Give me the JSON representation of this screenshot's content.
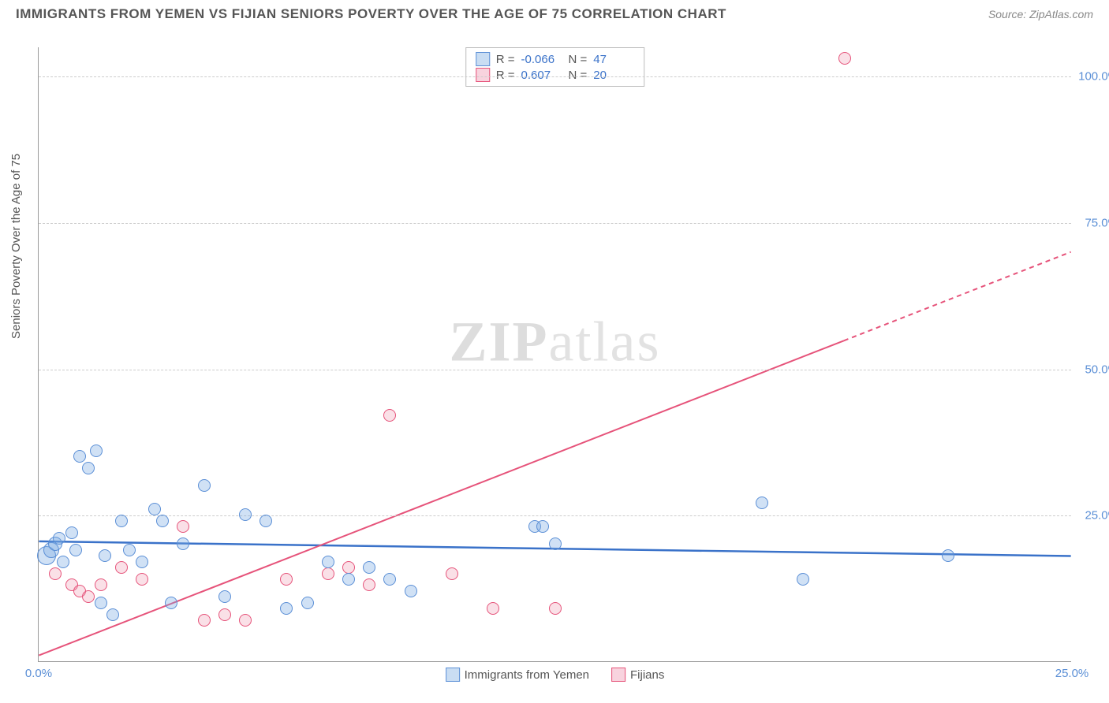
{
  "header": {
    "title": "IMMIGRANTS FROM YEMEN VS FIJIAN SENIORS POVERTY OVER THE AGE OF 75 CORRELATION CHART",
    "source_label": "Source: ZipAtlas.com"
  },
  "axes": {
    "y_label": "Seniors Poverty Over the Age of 75",
    "x_label": "",
    "xlim": [
      0,
      25
    ],
    "ylim": [
      0,
      105
    ],
    "y_ticks": [
      25,
      50,
      75,
      100
    ],
    "y_tick_labels": [
      "25.0%",
      "50.0%",
      "75.0%",
      "100.0%"
    ],
    "x_ticks": [
      0,
      25
    ],
    "x_tick_labels": [
      "0.0%",
      "25.0%"
    ],
    "grid_color": "#cccccc",
    "axis_color": "#999999",
    "tick_label_color": "#5b8fd6"
  },
  "watermark": {
    "part1": "ZIP",
    "part2": "atlas"
  },
  "stats_legend": {
    "rows": [
      {
        "swatch": "blue",
        "r_label": "R =",
        "r_value": "-0.066",
        "n_label": "N =",
        "n_value": "47"
      },
      {
        "swatch": "pink",
        "r_label": "R =",
        "r_value": "0.607",
        "n_label": "N =",
        "n_value": "20"
      }
    ]
  },
  "series_legend": {
    "items": [
      {
        "swatch": "blue",
        "label": "Immigrants from Yemen"
      },
      {
        "swatch": "pink",
        "label": "Fijians"
      }
    ]
  },
  "series": {
    "blue": {
      "color_fill": "rgba(120,170,225,0.35)",
      "color_stroke": "#5b8fd6",
      "marker_radius": 8,
      "trend": {
        "x1": 0,
        "y1": 20.5,
        "x2": 25,
        "y2": 18.0,
        "stroke": "#3a72c9",
        "width": 2.5,
        "dash_after_x": null
      },
      "points": [
        {
          "x": 0.2,
          "y": 18,
          "r": 12
        },
        {
          "x": 0.3,
          "y": 19,
          "r": 10
        },
        {
          "x": 0.4,
          "y": 20,
          "r": 9
        },
        {
          "x": 0.5,
          "y": 21,
          "r": 8
        },
        {
          "x": 0.6,
          "y": 17,
          "r": 8
        },
        {
          "x": 0.8,
          "y": 22,
          "r": 8
        },
        {
          "x": 0.9,
          "y": 19,
          "r": 8
        },
        {
          "x": 1.0,
          "y": 35,
          "r": 8
        },
        {
          "x": 1.2,
          "y": 33,
          "r": 8
        },
        {
          "x": 1.4,
          "y": 36,
          "r": 8
        },
        {
          "x": 1.5,
          "y": 10,
          "r": 8
        },
        {
          "x": 1.6,
          "y": 18,
          "r": 8
        },
        {
          "x": 1.8,
          "y": 8,
          "r": 8
        },
        {
          "x": 2.0,
          "y": 24,
          "r": 8
        },
        {
          "x": 2.2,
          "y": 19,
          "r": 8
        },
        {
          "x": 2.5,
          "y": 17,
          "r": 8
        },
        {
          "x": 2.8,
          "y": 26,
          "r": 8
        },
        {
          "x": 3.0,
          "y": 24,
          "r": 8
        },
        {
          "x": 3.2,
          "y": 10,
          "r": 8
        },
        {
          "x": 3.5,
          "y": 20,
          "r": 8
        },
        {
          "x": 4.0,
          "y": 30,
          "r": 8
        },
        {
          "x": 4.5,
          "y": 11,
          "r": 8
        },
        {
          "x": 5.0,
          "y": 25,
          "r": 8
        },
        {
          "x": 5.5,
          "y": 24,
          "r": 8
        },
        {
          "x": 6.0,
          "y": 9,
          "r": 8
        },
        {
          "x": 6.5,
          "y": 10,
          "r": 8
        },
        {
          "x": 7.0,
          "y": 17,
          "r": 8
        },
        {
          "x": 7.5,
          "y": 14,
          "r": 8
        },
        {
          "x": 8.0,
          "y": 16,
          "r": 8
        },
        {
          "x": 8.5,
          "y": 14,
          "r": 8
        },
        {
          "x": 9.0,
          "y": 12,
          "r": 8
        },
        {
          "x": 12.0,
          "y": 23,
          "r": 8
        },
        {
          "x": 12.2,
          "y": 23,
          "r": 8
        },
        {
          "x": 12.5,
          "y": 20,
          "r": 8
        },
        {
          "x": 17.5,
          "y": 27,
          "r": 8
        },
        {
          "x": 18.5,
          "y": 14,
          "r": 8
        },
        {
          "x": 22.0,
          "y": 18,
          "r": 8
        }
      ]
    },
    "pink": {
      "color_fill": "rgba(235,130,160,0.25)",
      "color_stroke": "#e6537a",
      "marker_radius": 8,
      "trend": {
        "x1": 0,
        "y1": 1,
        "x2": 25,
        "y2": 70,
        "stroke": "#e6537a",
        "width": 2,
        "dash_after_x": 19.5
      },
      "points": [
        {
          "x": 0.4,
          "y": 15,
          "r": 8
        },
        {
          "x": 0.8,
          "y": 13,
          "r": 8
        },
        {
          "x": 1.0,
          "y": 12,
          "r": 8
        },
        {
          "x": 1.2,
          "y": 11,
          "r": 8
        },
        {
          "x": 1.5,
          "y": 13,
          "r": 8
        },
        {
          "x": 2.0,
          "y": 16,
          "r": 8
        },
        {
          "x": 2.5,
          "y": 14,
          "r": 8
        },
        {
          "x": 3.5,
          "y": 23,
          "r": 8
        },
        {
          "x": 4.0,
          "y": 7,
          "r": 8
        },
        {
          "x": 4.5,
          "y": 8,
          "r": 8
        },
        {
          "x": 5.0,
          "y": 7,
          "r": 8
        },
        {
          "x": 6.0,
          "y": 14,
          "r": 8
        },
        {
          "x": 7.0,
          "y": 15,
          "r": 8
        },
        {
          "x": 7.5,
          "y": 16,
          "r": 8
        },
        {
          "x": 8.0,
          "y": 13,
          "r": 8
        },
        {
          "x": 8.5,
          "y": 42,
          "r": 8
        },
        {
          "x": 10.0,
          "y": 15,
          "r": 8
        },
        {
          "x": 11.0,
          "y": 9,
          "r": 8
        },
        {
          "x": 12.5,
          "y": 9,
          "r": 8
        },
        {
          "x": 19.5,
          "y": 103,
          "r": 8
        }
      ]
    }
  }
}
